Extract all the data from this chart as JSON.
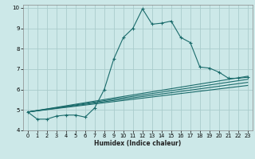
{
  "xlabel": "Humidex (Indice chaleur)",
  "background_color": "#cce8e8",
  "grid_color": "#aacccc",
  "line_color": "#1a6b6b",
  "xlim": [
    -0.5,
    23.5
  ],
  "ylim": [
    4,
    10.15
  ],
  "yticks": [
    4,
    5,
    6,
    7,
    8,
    9,
    10
  ],
  "xticks": [
    0,
    1,
    2,
    3,
    4,
    5,
    6,
    7,
    8,
    9,
    10,
    11,
    12,
    13,
    14,
    15,
    16,
    17,
    18,
    19,
    20,
    21,
    22,
    23
  ],
  "curve1_x": [
    0,
    1,
    2,
    3,
    4,
    5,
    6,
    7,
    8,
    9,
    10,
    11,
    12,
    13,
    14,
    15,
    16,
    17,
    18,
    19,
    20,
    21,
    22,
    23
  ],
  "curve1_y": [
    4.9,
    4.55,
    4.55,
    4.7,
    4.75,
    4.75,
    4.65,
    5.1,
    6.0,
    7.5,
    8.55,
    9.0,
    9.95,
    9.2,
    9.25,
    9.35,
    8.55,
    8.3,
    7.1,
    7.05,
    6.85,
    6.55,
    6.55,
    6.6
  ],
  "line2_x": [
    0,
    23
  ],
  "line2_y": [
    4.9,
    6.65
  ],
  "line3_x": [
    0,
    23
  ],
  "line3_y": [
    4.9,
    6.5
  ],
  "line4_x": [
    0,
    23
  ],
  "line4_y": [
    4.9,
    6.35
  ],
  "line5_x": [
    0,
    23
  ],
  "line5_y": [
    4.9,
    6.2
  ]
}
